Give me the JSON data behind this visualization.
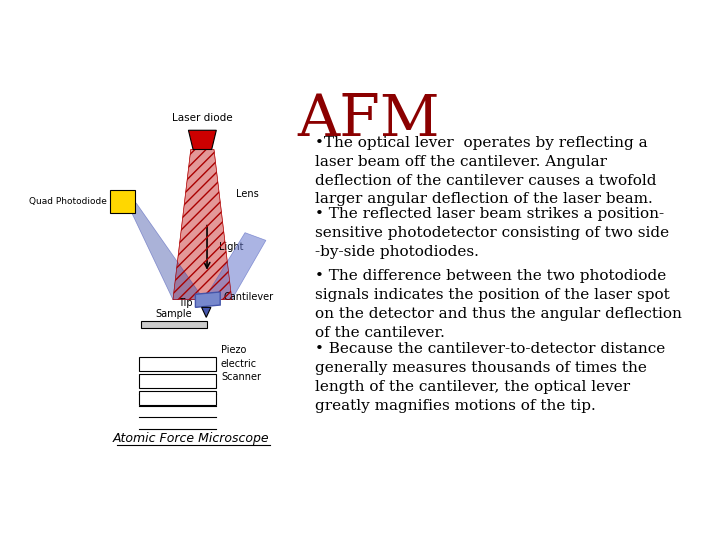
{
  "title": "AFM",
  "title_color": "#8B0000",
  "title_fontsize": 42,
  "title_font": "serif",
  "background_color": "#ffffff",
  "bullet1": "•The optical lever  operates by reflecting a\nlaser beam off the cantilever. Angular\ndeflection of the cantilever causes a twofold\nlarger angular deflection of the laser beam.",
  "bullet2": "• The reflected laser beam strikes a position-\nsensitive photodetector consisting of two side\n-by-side photodiodes.",
  "bullet3": "• The difference between the two photodiode\nsignals indicates the position of the laser spot\non the detector and thus the angular deflection\nof the cantilever.",
  "bullet4": "• Because the cantilever-to-detector distance\ngenerally measures thousands of times the\nlength of the cantilever, the optical lever\ngreatly magnifies motions of the tip.",
  "caption": "Atomic Force Microscope",
  "text_fontsize": 11,
  "caption_fontsize": 9,
  "text_color": "#000000",
  "laser_diode_label": "Laser diode",
  "quad_photodiode_label": "Quad Photodiode",
  "lens_label": "Lens",
  "light_label": "Light",
  "tip_label": "Tip",
  "cantilever_label": "Cantilever",
  "sample_label": "Sample",
  "piezo_label": "Piezo\nelectric\nScanner"
}
